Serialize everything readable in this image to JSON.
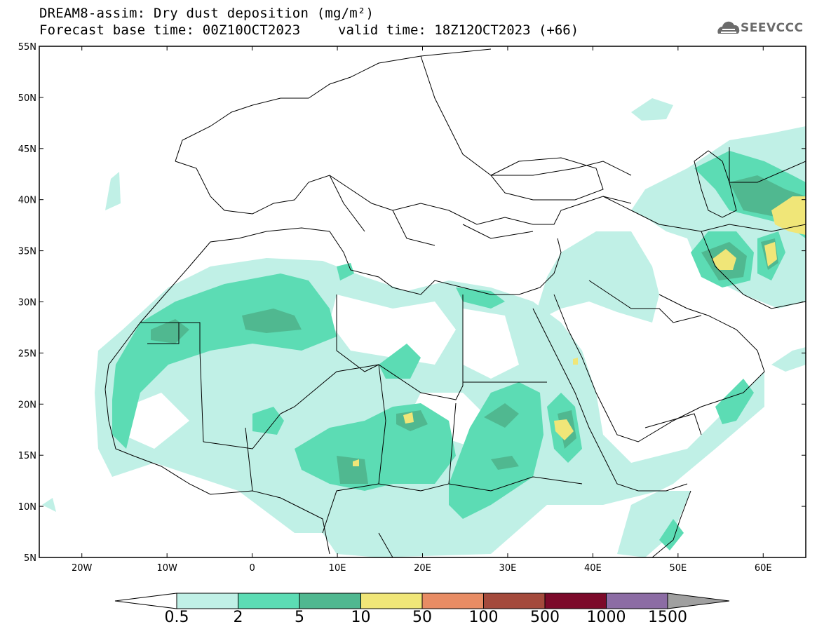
{
  "title": {
    "line1": "DREAM8-assim: Dry dust deposition (mg/m²)",
    "line2_left": "Forecast base time: 00Z10OCT2023",
    "line2_right": "valid time: 18Z12OCT2023 (+66)"
  },
  "logo": {
    "text": "SEEVCCC",
    "icon": "cloud-logo-icon",
    "color": "#6b6b6b"
  },
  "map": {
    "lon_range": [
      -25,
      65
    ],
    "lat_range": [
      5,
      55
    ],
    "lat_ticks": [
      "55N",
      "50N",
      "45N",
      "40N",
      "35N",
      "30N",
      "25N",
      "20N",
      "15N",
      "10N",
      "5N"
    ],
    "lon_ticks": [
      "20W",
      "10W",
      "0",
      "10E",
      "20E",
      "30E",
      "40E",
      "50E",
      "60E"
    ]
  },
  "colorbar": {
    "labels": [
      "0.5",
      "2",
      "5",
      "10",
      "50",
      "100",
      "500",
      "1000",
      "1500"
    ],
    "colors": [
      "#c0f0e6",
      "#5cdcb4",
      "#50b890",
      "#f0e678",
      "#e88c64",
      "#a44a3c",
      "#7c0a2a",
      "#8c6ca4",
      "#a0a0a0"
    ],
    "under_color": "#ffffff"
  }
}
